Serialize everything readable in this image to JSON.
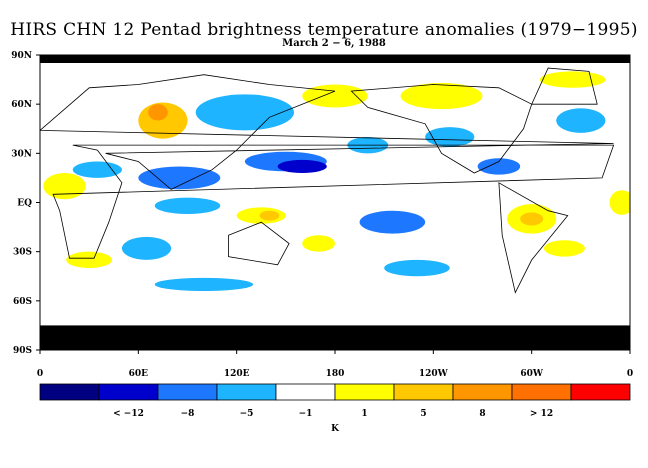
{
  "title": "HIRS CHN 12 Pentad brightness temperature anomalies (1979−1995)",
  "subtitle": "March 2 − 6, 1988",
  "colors": {
    "c1": "#000080",
    "c2": "#0000cd",
    "c3": "#1e78ff",
    "c4": "#1eb4ff",
    "c5": "#ffffff",
    "c6": "#ffff00",
    "c7": "#ffc800",
    "c8": "#ff9600",
    "c9": "#ff7000",
    "c10": "#ff0000",
    "missing": "#000000"
  },
  "chart_data": {
    "type": "heatmap",
    "title": "HIRS CHN 12 Pentad brightness temperature anomalies (1979−1995)",
    "subtitle": "March 2 − 6, 1988",
    "x_ticks": [
      "0",
      "60E",
      "120E",
      "180",
      "120W",
      "60W",
      "0"
    ],
    "y_ticks": [
      "90N",
      "60N",
      "30N",
      "EQ",
      "30S",
      "60S",
      "90S"
    ],
    "xlim": [
      0,
      360
    ],
    "ylim": [
      -90,
      90
    ],
    "colorbar": {
      "ticks": [
        "< −12",
        "−8",
        "−5",
        "−1",
        "1",
        "5",
        "8",
        "> 12"
      ],
      "label": "K",
      "colors": [
        "#000080",
        "#0000cd",
        "#1e78ff",
        "#1eb4ff",
        "#ffffff",
        "#ffff00",
        "#ffc800",
        "#ff9600",
        "#ff7000",
        "#ff0000"
      ]
    },
    "regions": [
      {
        "lon": 75,
        "lat": 50,
        "w": 30,
        "h": 22,
        "level": 7
      },
      {
        "lon": 72,
        "lat": 55,
        "w": 12,
        "h": 10,
        "level": 8
      },
      {
        "lon": 125,
        "lat": 55,
        "w": 60,
        "h": 22,
        "level": 4
      },
      {
        "lon": 150,
        "lat": 25,
        "w": 50,
        "h": 12,
        "level": 3
      },
      {
        "lon": 160,
        "lat": 22,
        "w": 30,
        "h": 8,
        "level": 2
      },
      {
        "lon": 85,
        "lat": 15,
        "w": 50,
        "h": 14,
        "level": 3
      },
      {
        "lon": 35,
        "lat": 20,
        "w": 30,
        "h": 10,
        "level": 4
      },
      {
        "lon": 15,
        "lat": 10,
        "w": 26,
        "h": 16,
        "level": 6
      },
      {
        "lon": 90,
        "lat": -2,
        "w": 40,
        "h": 10,
        "level": 4
      },
      {
        "lon": 135,
        "lat": -8,
        "w": 30,
        "h": 10,
        "level": 6
      },
      {
        "lon": 140,
        "lat": -8,
        "w": 12,
        "h": 6,
        "level": 7
      },
      {
        "lon": 65,
        "lat": -28,
        "w": 30,
        "h": 14,
        "level": 4
      },
      {
        "lon": 30,
        "lat": -35,
        "w": 28,
        "h": 10,
        "level": 6
      },
      {
        "lon": 170,
        "lat": -25,
        "w": 20,
        "h": 10,
        "level": 6
      },
      {
        "lon": 215,
        "lat": -12,
        "w": 40,
        "h": 14,
        "level": 3
      },
      {
        "lon": 180,
        "lat": 65,
        "w": 40,
        "h": 14,
        "level": 6
      },
      {
        "lon": 245,
        "lat": 65,
        "w": 50,
        "h": 16,
        "level": 6
      },
      {
        "lon": 250,
        "lat": 40,
        "w": 30,
        "h": 12,
        "level": 4
      },
      {
        "lon": 280,
        "lat": 22,
        "w": 26,
        "h": 10,
        "level": 3
      },
      {
        "lon": 300,
        "lat": -10,
        "w": 30,
        "h": 18,
        "level": 6
      },
      {
        "lon": 300,
        "lat": -10,
        "w": 14,
        "h": 8,
        "level": 7
      },
      {
        "lon": 320,
        "lat": -28,
        "w": 25,
        "h": 10,
        "level": 6
      },
      {
        "lon": 325,
        "lat": 75,
        "w": 40,
        "h": 10,
        "level": 6
      },
      {
        "lon": 330,
        "lat": 50,
        "w": 30,
        "h": 15,
        "level": 4
      },
      {
        "lon": 230,
        "lat": -40,
        "w": 40,
        "h": 10,
        "level": 4
      },
      {
        "lon": 100,
        "lat": -50,
        "w": 60,
        "h": 8,
        "level": 4
      },
      {
        "lon": 200,
        "lat": 35,
        "w": 25,
        "h": 10,
        "level": 4
      },
      {
        "lon": 355,
        "lat": 0,
        "w": 15,
        "h": 15,
        "level": 6
      }
    ]
  }
}
